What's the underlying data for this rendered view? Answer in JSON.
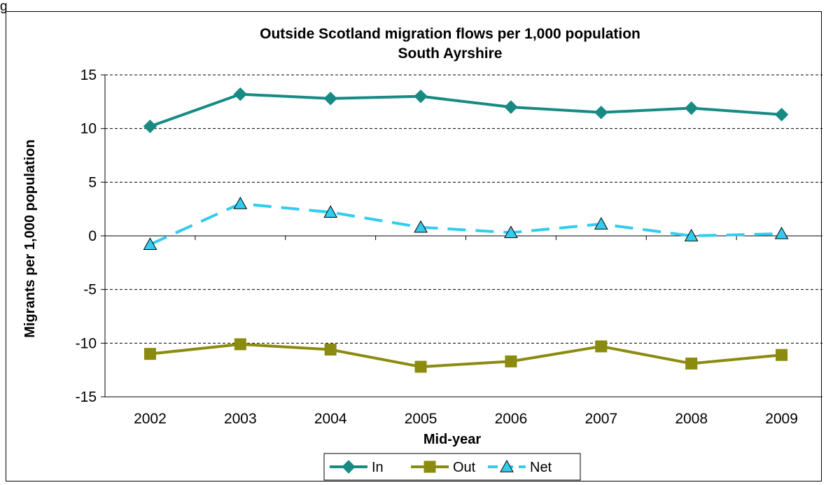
{
  "figure_label": "g",
  "chart_data": {
    "type": "line",
    "title": "Outside Scotland migration flows per 1,000 population",
    "subtitle": "South Ayrshire",
    "xlabel": "Mid-year",
    "ylabel": "Migrants per 1,000 population",
    "x": [
      "2002",
      "2003",
      "2004",
      "2005",
      "2006",
      "2007",
      "2008",
      "2009"
    ],
    "ylim": [
      -15,
      15
    ],
    "yticks": [
      15,
      10,
      5,
      0,
      -5,
      -10,
      -15
    ],
    "grid": true,
    "legend_position": "bottom",
    "series": [
      {
        "name": "In",
        "values": [
          10.2,
          13.2,
          12.8,
          13.0,
          12.0,
          11.5,
          11.9,
          11.3
        ],
        "color": "#178a84",
        "marker": "diamond",
        "dash": "solid"
      },
      {
        "name": "Out",
        "values": [
          -11.0,
          -10.1,
          -10.6,
          -12.2,
          -11.7,
          -10.3,
          -11.9,
          -11.1
        ],
        "color": "#8b8b10",
        "marker": "square",
        "dash": "solid"
      },
      {
        "name": "Net",
        "values": [
          -0.8,
          3.0,
          2.2,
          0.8,
          0.3,
          1.1,
          0.0,
          0.2
        ],
        "color": "#33ccee",
        "marker": "triangle",
        "dash": "dashed"
      }
    ]
  }
}
